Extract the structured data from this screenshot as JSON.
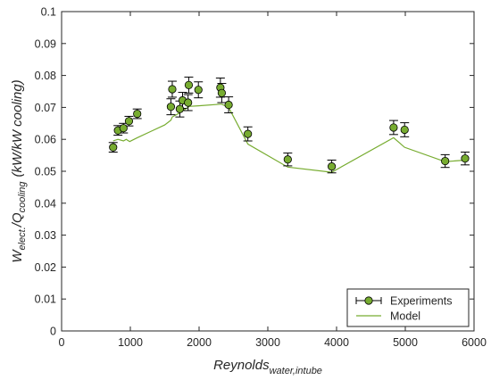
{
  "chart_data": {
    "type": "scatter",
    "title": "",
    "xlabel": {
      "main": "Reynolds",
      "subscript": "water,intube"
    },
    "ylabel": {
      "w": "W",
      "w_sub": "elect.",
      "q": "/Q",
      "q_sub": "cooling",
      "units": "(kW/kW cooling)"
    },
    "xlim": [
      0,
      6000
    ],
    "ylim": [
      0,
      0.1
    ],
    "xticks": [
      0,
      1000,
      2000,
      3000,
      4000,
      5000,
      6000
    ],
    "yticks": [
      0,
      0.01,
      0.02,
      0.03,
      0.04,
      0.05,
      0.06,
      0.07,
      0.08,
      0.09,
      0.1
    ],
    "xtick_labels": [
      "0",
      "1000",
      "2000",
      "3000",
      "4000",
      "5000",
      "6000"
    ],
    "ytick_labels": [
      "0",
      "0.01",
      "0.02",
      "0.03",
      "0.04",
      "0.05",
      "0.06",
      "0.07",
      "0.08",
      "0.09",
      "0.1"
    ],
    "grid": false,
    "legend_position": "bottom-right",
    "colors": {
      "marker_fill": "#77ac30",
      "marker_edge": "#000000",
      "model_line": "#77ac30",
      "error_bar": "#000000"
    },
    "series": [
      {
        "name": "Experiments",
        "kind": "markers-with-errorbars",
        "points": [
          {
            "x": 750,
            "y": 0.0575,
            "err": 0.0015
          },
          {
            "x": 820,
            "y": 0.0628,
            "err": 0.0015
          },
          {
            "x": 900,
            "y": 0.0635,
            "err": 0.0015
          },
          {
            "x": 980,
            "y": 0.0657,
            "err": 0.0015
          },
          {
            "x": 1100,
            "y": 0.068,
            "err": 0.0015
          },
          {
            "x": 1590,
            "y": 0.0702,
            "err": 0.0025
          },
          {
            "x": 1610,
            "y": 0.0757,
            "err": 0.0025
          },
          {
            "x": 1720,
            "y": 0.0695,
            "err": 0.0025
          },
          {
            "x": 1760,
            "y": 0.0722,
            "err": 0.0025
          },
          {
            "x": 1840,
            "y": 0.0715,
            "err": 0.0025
          },
          {
            "x": 1850,
            "y": 0.077,
            "err": 0.0025
          },
          {
            "x": 1990,
            "y": 0.0755,
            "err": 0.0025
          },
          {
            "x": 2310,
            "y": 0.0762,
            "err": 0.003
          },
          {
            "x": 2330,
            "y": 0.0745,
            "err": 0.003
          },
          {
            "x": 2430,
            "y": 0.0708,
            "err": 0.0025
          },
          {
            "x": 2710,
            "y": 0.0617,
            "err": 0.0022
          },
          {
            "x": 3290,
            "y": 0.0537,
            "err": 0.002
          },
          {
            "x": 3930,
            "y": 0.0515,
            "err": 0.002
          },
          {
            "x": 4830,
            "y": 0.0637,
            "err": 0.0022
          },
          {
            "x": 4990,
            "y": 0.063,
            "err": 0.0022
          },
          {
            "x": 5580,
            "y": 0.0532,
            "err": 0.002
          },
          {
            "x": 5870,
            "y": 0.054,
            "err": 0.002
          }
        ]
      },
      {
        "name": "Model",
        "kind": "line",
        "x": [
          750,
          820,
          900,
          940,
          990,
          1100,
          1300,
          1500,
          1590,
          1610,
          1720,
          1760,
          1840,
          1850,
          1990,
          2310,
          2330,
          2430,
          2710,
          3290,
          3930,
          4830,
          4990,
          5580,
          5870
        ],
        "y": [
          0.0595,
          0.06,
          0.0595,
          0.06,
          0.0593,
          0.0605,
          0.0625,
          0.0645,
          0.066,
          0.067,
          0.0683,
          0.069,
          0.07,
          0.0703,
          0.0705,
          0.071,
          0.071,
          0.07,
          0.0585,
          0.0513,
          0.0497,
          0.0605,
          0.0575,
          0.053,
          0.0535
        ]
      }
    ]
  }
}
